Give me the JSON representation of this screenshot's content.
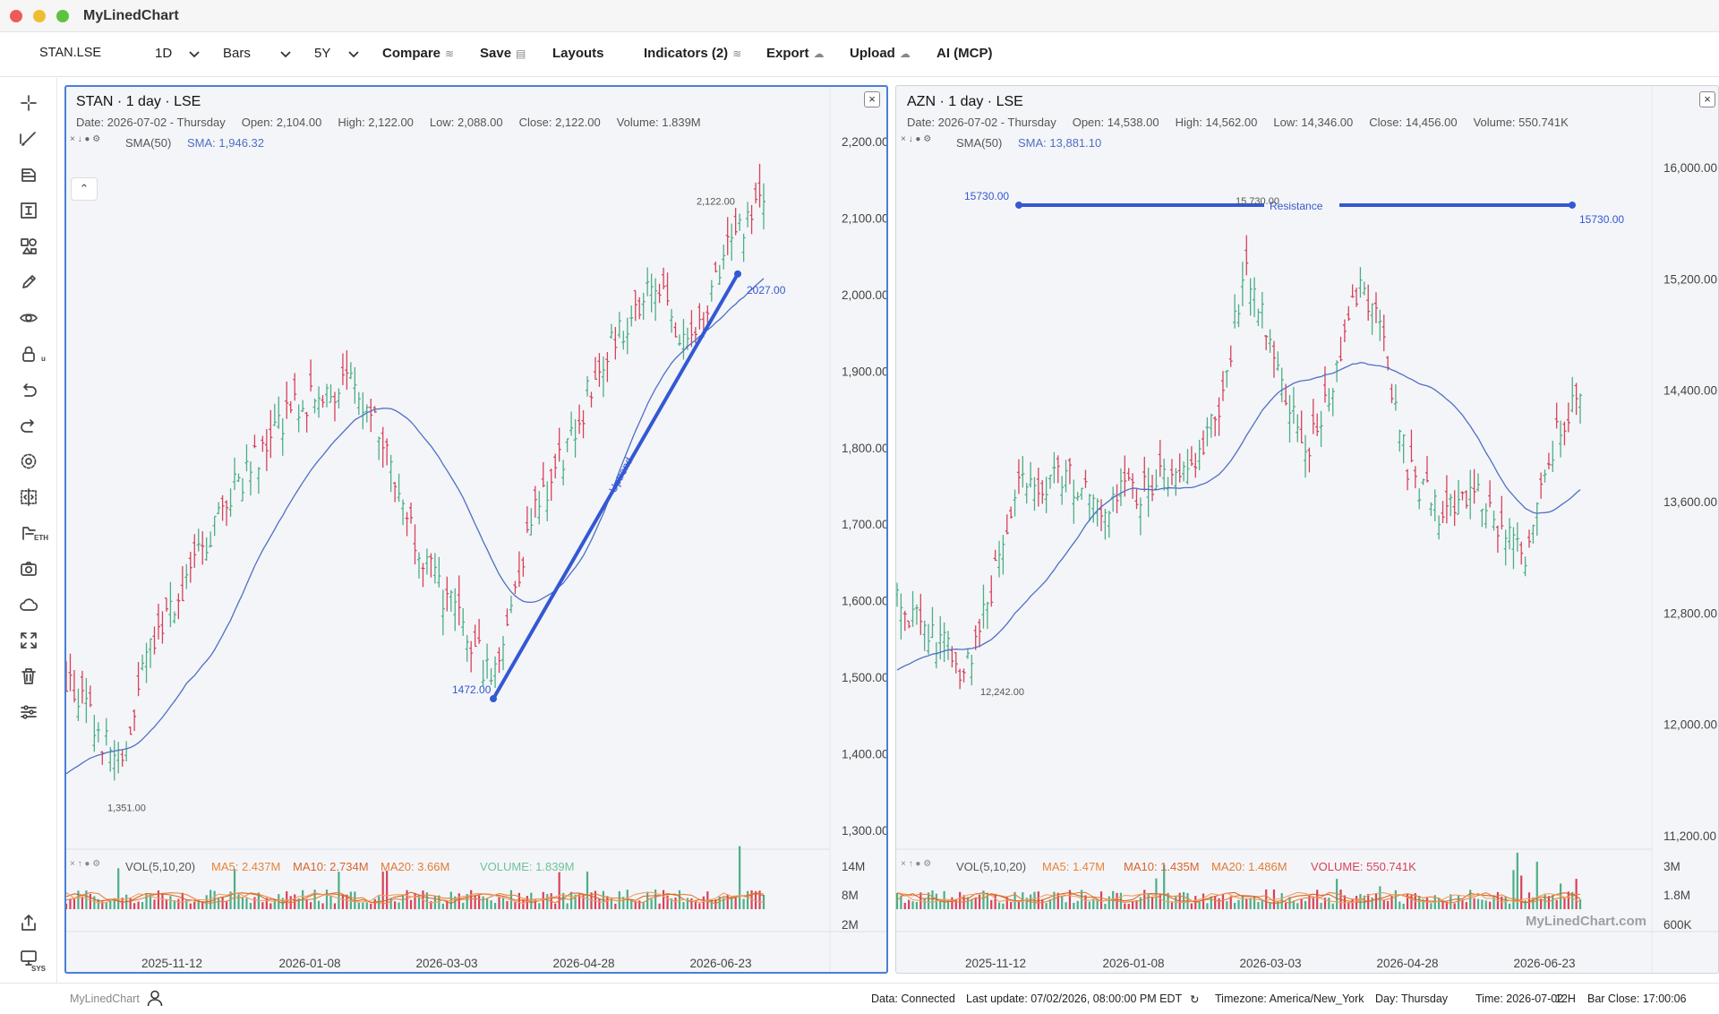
{
  "app": {
    "title": "MyLinedChart"
  },
  "toolbar": {
    "symbol": "STAN.LSE",
    "interval": "1D",
    "chart_type": "Bars",
    "range": "5Y",
    "compare": "Compare",
    "save": "Save",
    "layouts": "Layouts",
    "indicators": "Indicators (2)",
    "export": "Export",
    "upload": "Upload",
    "ai": "AI (MCP)"
  },
  "left_tools": [
    "crosshair-icon",
    "trendline-icon",
    "fib-icon",
    "measure-icon",
    "shapes-icon",
    "brush-icon",
    "eye-icon",
    "lock-icon",
    "undo-icon",
    "redo-icon",
    "settings-icon",
    "compare-split-icon",
    "eth-icon",
    "camera-icon",
    "cloud-icon",
    "fullscreen-icon",
    "trash-icon",
    "sliders-icon",
    "share-icon",
    "sys-icon"
  ],
  "left_badges": {
    "lock": "u",
    "eth": "ETH",
    "sys": "SYS"
  },
  "colors": {
    "up": "#4cae87",
    "down": "#d6425a",
    "sma": "#4f6fc6",
    "drawing": "#3358d4",
    "ma": "#e8833a",
    "frame": "#4a7fd4"
  },
  "panels": [
    {
      "title": "STAN · 1 day · LSE",
      "ohlc": {
        "date": "Date: 2026-07-02 - Thursday",
        "open": "Open: 2,104.00",
        "high": "High: 2,122.00",
        "low": "Low: 2,088.00",
        "close": "Close: 2,122.00",
        "volume": "Volume: 1.839M"
      },
      "sma": {
        "name": "SMA(50)",
        "value": "SMA: 1,946.32"
      },
      "vol": {
        "name": "VOL(5,10,20)",
        "ma5": "MA5: 2.437M",
        "ma10": "MA10: 2.734M",
        "ma20": "MA20: 3.66M",
        "volume": "VOLUME: 1.839M"
      },
      "price_axis": [
        "2,200.00",
        "2,100.00",
        "2,000.00",
        "1,900.00",
        "1,800.00",
        "1,700.00",
        "1,600.00",
        "1,500.00",
        "1,400.00",
        "1,300.00"
      ],
      "vol_axis": [
        "14M",
        "8M",
        "2M"
      ],
      "dates": [
        "2025-11-12",
        "2026-01-08",
        "2026-03-03",
        "2026-04-28",
        "2026-06-23"
      ],
      "markers": {
        "high": "2,122.00",
        "low": "1,351.00"
      },
      "drawing": {
        "name": "Uptrend",
        "start": "1472.00",
        "end": "2027.00"
      },
      "price_range": [
        1300,
        2200
      ]
    },
    {
      "title": "AZN · 1 day · LSE",
      "ohlc": {
        "date": "Date: 2026-07-02 - Thursday",
        "open": "Open: 14,538.00",
        "high": "High: 14,562.00",
        "low": "Low: 14,346.00",
        "close": "Close: 14,456.00",
        "volume": "Volume: 550.741K"
      },
      "sma": {
        "name": "SMA(50)",
        "value": "SMA: 13,881.10"
      },
      "vol": {
        "name": "VOL(5,10,20)",
        "ma5": "MA5: 1.47M",
        "ma10": "MA10: 1.435M",
        "ma20": "MA20: 1.486M",
        "volume": "VOLUME: 550.741K"
      },
      "price_axis": [
        "16,000.00",
        "15,200.00",
        "14,400.00",
        "13,600.00",
        "12,800.00",
        "12,000.00",
        "11,200.00"
      ],
      "vol_axis": [
        "3M",
        "1.8M",
        "600K"
      ],
      "dates": [
        "2025-11-12",
        "2026-01-08",
        "2026-03-03",
        "2026-04-28",
        "2026-06-23"
      ],
      "markers": {
        "high": "15,730.00",
        "low": "12,242.00"
      },
      "drawing": {
        "name": "Resistance",
        "start": "15730.00",
        "end": "15730.00"
      },
      "price_range": [
        11200,
        16000
      ]
    }
  ],
  "watermark": "MyLinedChart.com",
  "footer": {
    "brand": "MyLinedChart",
    "status": "Data: Connected",
    "last_update": "Last update: 07/02/2026, 08:00:00 PM EDT",
    "refresh_icon": "↻",
    "timezone": "Timezone: America/New_York",
    "day": "Day: Thursday",
    "time": "Time: 2026-07-02",
    "hour_format": "12H",
    "bar_close": "Bar Close: 17:00:06"
  }
}
